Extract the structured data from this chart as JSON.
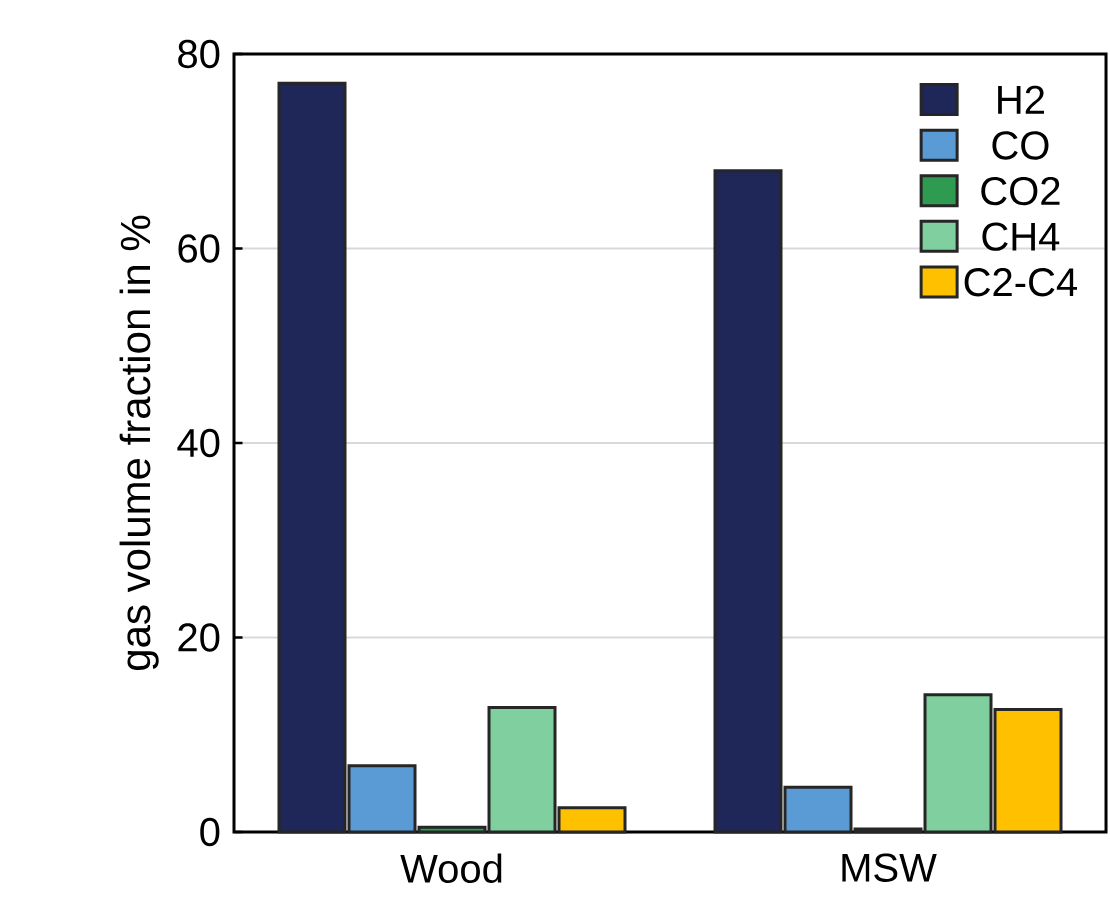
{
  "chart_data": {
    "type": "bar",
    "ylabel": "gas volume fraction in %",
    "categories": [
      "Wood",
      "MSW"
    ],
    "series": [
      {
        "name": "H2",
        "color": "#1f2759",
        "values": [
          77,
          68
        ]
      },
      {
        "name": "CO",
        "color": "#5b9bd5",
        "values": [
          6.8,
          4.6
        ]
      },
      {
        "name": "CO2",
        "color": "#2e9b50",
        "values": [
          0.5,
          0.3
        ]
      },
      {
        "name": "CH4",
        "color": "#7fcf9f",
        "values": [
          12.8,
          14.1
        ]
      },
      {
        "name": "C2-C4",
        "color": "#ffc000",
        "values": [
          2.5,
          12.6
        ]
      }
    ],
    "ylim": [
      0,
      80
    ],
    "yticks": [
      0,
      20,
      40,
      60,
      80
    ],
    "grid": "y",
    "legend": "top right"
  }
}
